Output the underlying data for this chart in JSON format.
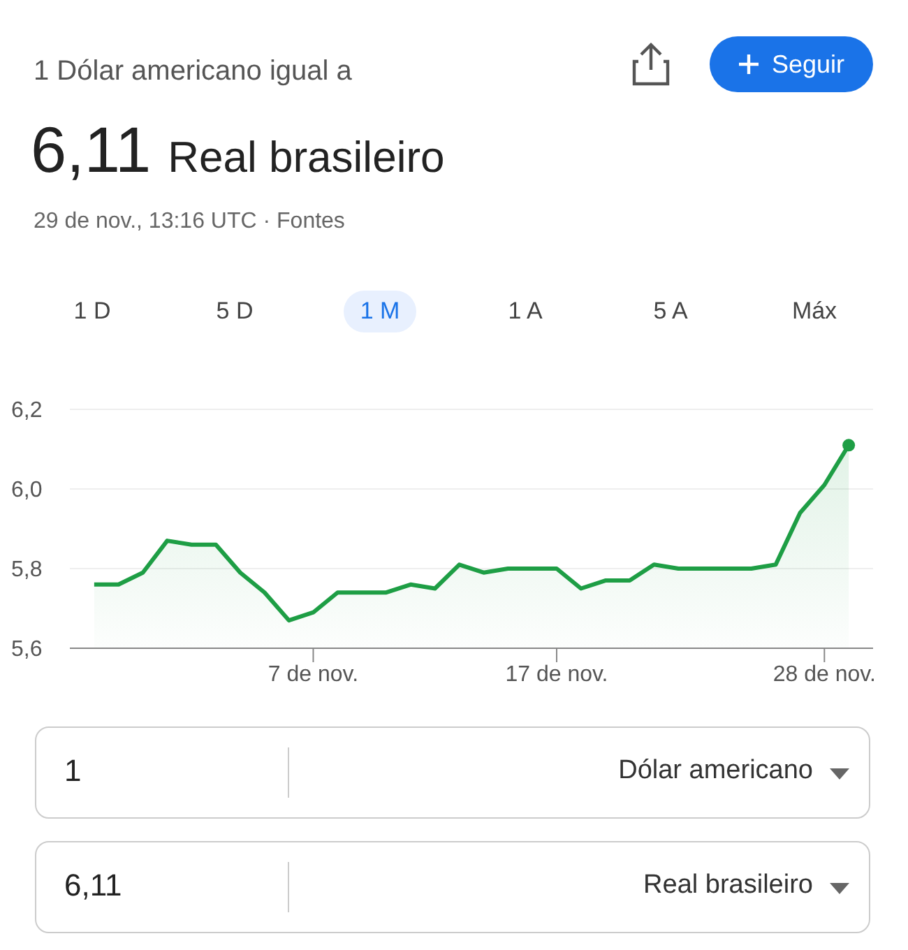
{
  "chart_data": {
    "type": "area",
    "title": "1 Dólar americano igual a",
    "subtitle": "6,11 Real brasileiro",
    "annotations": [
      "29 de nov., 13:16 UTC · Fontes",
      "Seguir",
      "1 D",
      "5 D",
      "1 M",
      "1 A",
      "5 A",
      "Máx",
      "1",
      "Dólar americano",
      "6,11",
      "Real brasileiro"
    ],
    "x": [
      "--10-29",
      "--10-30",
      "--10-31",
      "--11-01",
      "--11-02",
      "--11-03",
      "--11-04",
      "--11-05",
      "--11-06",
      "--11-07",
      "--11-08",
      "--11-09",
      "--11-10",
      "--11-11",
      "--11-12",
      "--11-13",
      "--11-14",
      "--11-15",
      "--11-16",
      "--11-17",
      "--11-18",
      "--11-19",
      "--11-20",
      "--11-21",
      "--11-22",
      "--11-23",
      "--11-24",
      "--11-25",
      "--11-26",
      "--11-27",
      "--11-28",
      "--11-29"
    ],
    "series": [
      {
        "color": "#1e9e45",
        "values": [
          5.76,
          5.76,
          5.79,
          5.87,
          5.86,
          5.86,
          5.79,
          5.74,
          5.67,
          5.69,
          5.74,
          5.74,
          5.74,
          5.76,
          5.75,
          5.81,
          5.79,
          5.8,
          5.8,
          5.8,
          5.75,
          5.77,
          5.77,
          5.81,
          5.8,
          5.8,
          5.8,
          5.8,
          5.81,
          5.94,
          6.01,
          6.11
        ]
      },
      {
        "type": "scatter",
        "marker": "circle",
        "color": "#1e9e45",
        "x": [
          "--11-29"
        ],
        "values": [
          6.11
        ]
      }
    ],
    "xlim": [
      "--10-28",
      "--11-30"
    ],
    "xticks": [
      {
        "value": "--11-07",
        "label": "7 de nov."
      },
      {
        "value": "--11-17",
        "label": "17 de nov."
      },
      {
        "value": "--11-28",
        "label": "28 de nov."
      }
    ],
    "ylim": [
      5.6,
      6.2
    ],
    "yticks": [
      {
        "value": 5.6,
        "label": "5,6"
      },
      {
        "value": 5.8,
        "label": "5,8"
      },
      {
        "value": 6.0,
        "label": "6,0"
      },
      {
        "value": 6.2,
        "label": "6,2"
      }
    ],
    "grid": "y",
    "legend": false
  }
}
